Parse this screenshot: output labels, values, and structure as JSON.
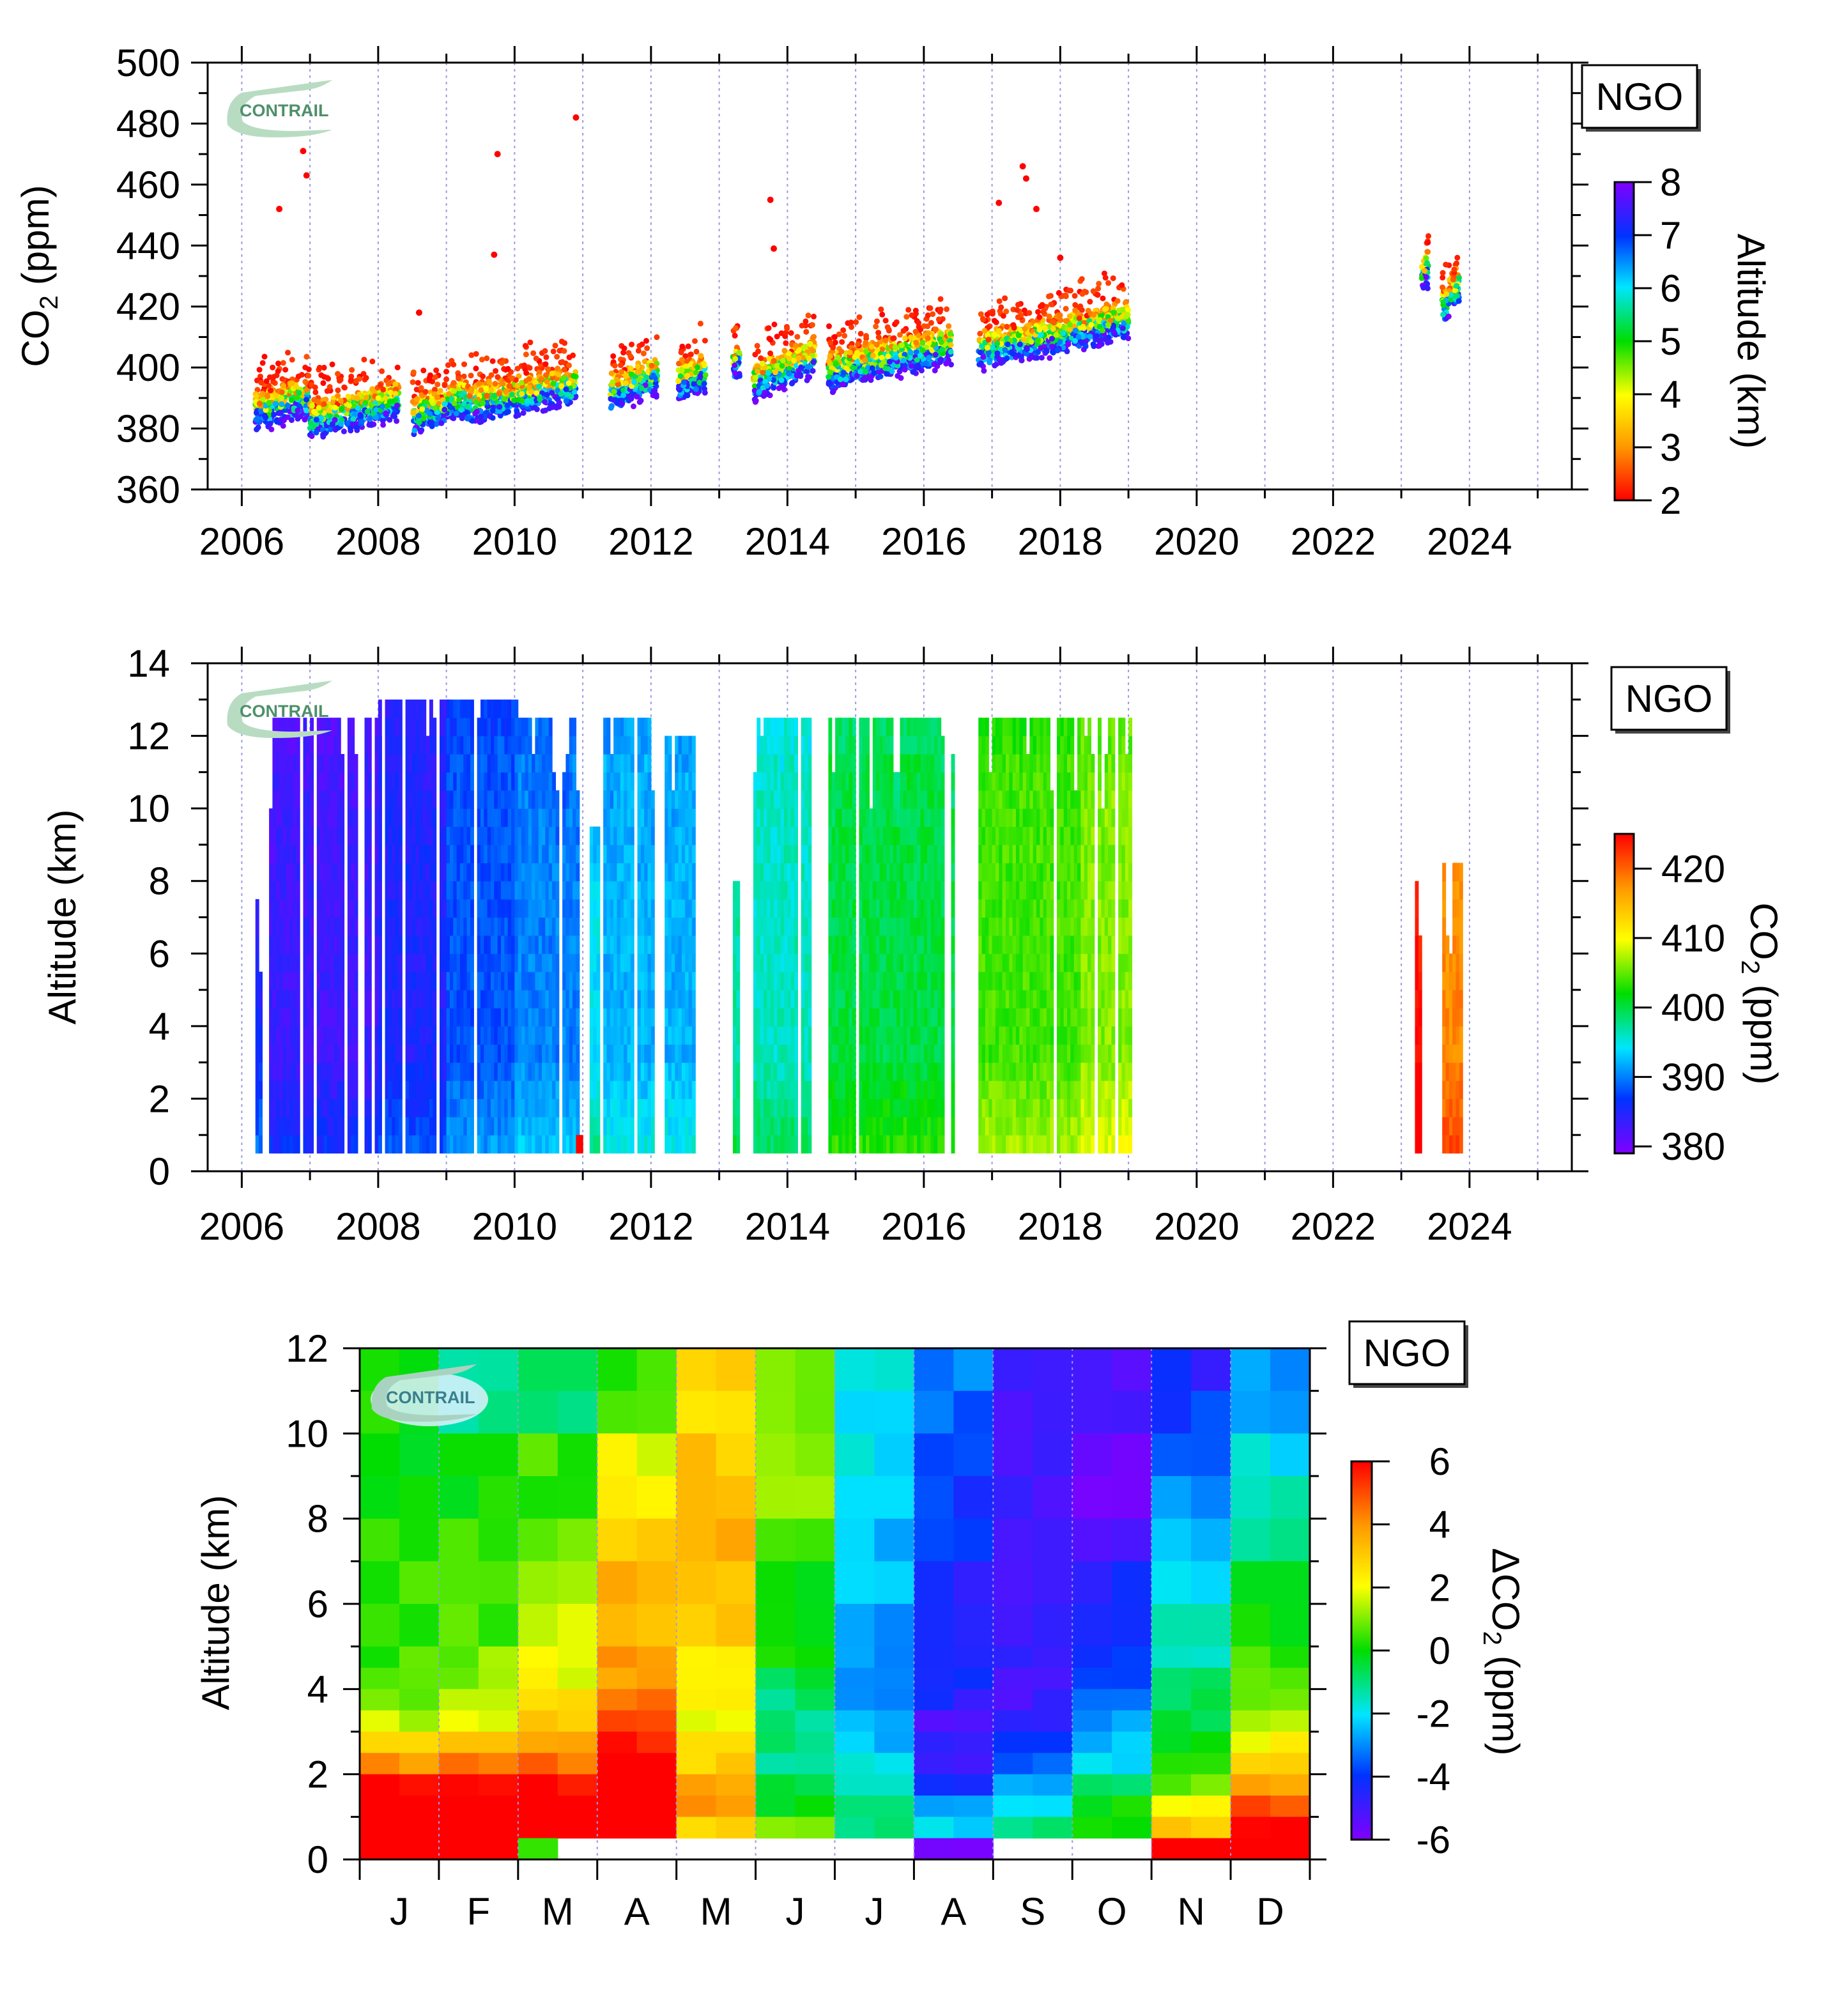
{
  "chart_data": [
    {
      "type": "scatter",
      "ylabel": "CO2 (ppm)",
      "ylabel_main": "CO",
      "ylabel_sub": "2",
      "ylabel_unit": "(ppm)",
      "xlim": [
        2005.5,
        2025.5
      ],
      "ylim": [
        360,
        500
      ],
      "x_ticks": [
        2006,
        2008,
        2010,
        2012,
        2014,
        2016,
        2018,
        2020,
        2022,
        2024
      ],
      "y_ticks": [
        360,
        380,
        400,
        420,
        440,
        460,
        480,
        500
      ],
      "grid": "vertical dotted lines each year",
      "colorbar": {
        "label": "Altitude (km)",
        "range": [
          2,
          8
        ],
        "ticks": [
          2,
          3,
          4,
          5,
          6,
          7,
          8
        ]
      },
      "site_label": "NGO",
      "logo": "CONTRAIL",
      "series_segments": [
        {
          "x_start": 2006.2,
          "x_end": 2007.0,
          "y_low": 380,
          "y_high": 392
        },
        {
          "x_start": 2007.0,
          "x_end": 2008.3,
          "y_low": 377,
          "y_high": 394
        },
        {
          "x_start": 2008.5,
          "x_end": 2009.3,
          "y_low": 378,
          "y_high": 395
        },
        {
          "x_start": 2009.3,
          "x_end": 2010.9,
          "y_low": 382,
          "y_high": 399
        },
        {
          "x_start": 2011.4,
          "x_end": 2012.1,
          "y_low": 386,
          "y_high": 401
        },
        {
          "x_start": 2012.4,
          "x_end": 2012.8,
          "y_low": 390,
          "y_high": 397
        },
        {
          "x_start": 2013.2,
          "x_end": 2013.3,
          "y_low": 396,
          "y_high": 400
        },
        {
          "x_start": 2013.5,
          "x_end": 2014.4,
          "y_low": 390,
          "y_high": 410
        },
        {
          "x_start": 2014.6,
          "x_end": 2016.4,
          "y_low": 393,
          "y_high": 415
        },
        {
          "x_start": 2016.8,
          "x_end": 2019.0,
          "y_low": 400,
          "y_high": 425
        },
        {
          "x_start": 2023.3,
          "x_end": 2023.4,
          "y_low": 425,
          "y_high": 430
        },
        {
          "x_start": 2023.6,
          "x_end": 2023.85,
          "y_low": 414,
          "y_high": 434
        }
      ],
      "outliers": [
        {
          "x": 2006.55,
          "y": 452
        },
        {
          "x": 2006.9,
          "y": 471
        },
        {
          "x": 2006.95,
          "y": 463
        },
        {
          "x": 2009.75,
          "y": 470
        },
        {
          "x": 2009.7,
          "y": 437
        },
        {
          "x": 2010.9,
          "y": 482
        },
        {
          "x": 2013.75,
          "y": 455
        },
        {
          "x": 2013.8,
          "y": 439
        },
        {
          "x": 2017.1,
          "y": 454
        },
        {
          "x": 2017.45,
          "y": 466
        },
        {
          "x": 2017.5,
          "y": 462
        },
        {
          "x": 2017.65,
          "y": 452
        },
        {
          "x": 2018.0,
          "y": 436
        },
        {
          "x": 2008.6,
          "y": 418
        }
      ]
    },
    {
      "type": "heatmap",
      "ylabel": "Altitude (km)",
      "xlim": [
        2005.5,
        2025.5
      ],
      "ylim": [
        0,
        14
      ],
      "x_ticks": [
        2006,
        2008,
        2010,
        2012,
        2014,
        2016,
        2018,
        2020,
        2022,
        2024
      ],
      "y_ticks": [
        0,
        2,
        4,
        6,
        8,
        10,
        12,
        14
      ],
      "colorbar": {
        "label": "CO2 (ppm)",
        "label_main": "CO",
        "label_sub": "2",
        "label_unit": "(ppm)",
        "range": [
          379,
          425
        ],
        "ticks": [
          380,
          390,
          400,
          410,
          420
        ]
      },
      "site_label": "NGO",
      "logo": "CONTRAIL",
      "bands": [
        {
          "x_start": 2006.2,
          "x_end": 2006.3,
          "top": 8,
          "v": 386
        },
        {
          "x_start": 2006.4,
          "x_end": 2008.0,
          "top": 12.5,
          "v": 383
        },
        {
          "x_start": 2008.0,
          "x_end": 2009.0,
          "top": 13,
          "v": 385
        },
        {
          "x_start": 2009.0,
          "x_end": 2010.0,
          "top": 13,
          "v": 388
        },
        {
          "x_start": 2010.0,
          "x_end": 2010.9,
          "top": 12.5,
          "v": 390
        },
        {
          "x_start": 2010.9,
          "x_end": 2011.0,
          "top": 1,
          "v": 425
        },
        {
          "x_start": 2011.1,
          "x_end": 2011.2,
          "top": 9.5,
          "v": 394
        },
        {
          "x_start": 2011.3,
          "x_end": 2012.0,
          "top": 12.5,
          "v": 392
        },
        {
          "x_start": 2012.2,
          "x_end": 2012.6,
          "top": 12,
          "v": 392
        },
        {
          "x_start": 2013.2,
          "x_end": 2013.3,
          "top": 8,
          "v": 397
        },
        {
          "x_start": 2013.5,
          "x_end": 2014.4,
          "top": 12.5,
          "v": 396
        },
        {
          "x_start": 2014.6,
          "x_end": 2016.4,
          "top": 12.5,
          "v": 400
        },
        {
          "x_start": 2016.8,
          "x_end": 2018.3,
          "top": 12.5,
          "v": 404
        },
        {
          "x_start": 2018.3,
          "x_end": 2019.0,
          "top": 12.5,
          "v": 406
        },
        {
          "x_start": 2023.2,
          "x_end": 2023.3,
          "top": 8,
          "v": 425
        },
        {
          "x_start": 2023.6,
          "x_end": 2023.85,
          "top": 8.5,
          "v": 418
        }
      ]
    },
    {
      "type": "heatmap",
      "ylabel": "Altitude (km)",
      "x_categories": [
        "J",
        "F",
        "M",
        "A",
        "M",
        "J",
        "J",
        "A",
        "S",
        "O",
        "N",
        "D"
      ],
      "ylim": [
        0,
        12
      ],
      "y_ticks": [
        0,
        2,
        4,
        6,
        8,
        10,
        12
      ],
      "colorbar": {
        "label": "ΔCO2 (ppm)",
        "label_main": "ΔCO",
        "label_sub": "2",
        "label_unit": "(ppm)",
        "range": [
          -6,
          6
        ],
        "ticks": [
          -6,
          -4,
          -2,
          0,
          2,
          4,
          6
        ]
      },
      "site_label": "NGO",
      "logo": "CONTRAIL",
      "altitude_bands": [
        12,
        11,
        10,
        9,
        8,
        7,
        6,
        5,
        4.5,
        4,
        3.5,
        3,
        2.5,
        2,
        1.5,
        1,
        0.5
      ],
      "profiles": {
        "J": [
          0,
          0,
          0,
          0,
          0.5,
          0.5,
          0.5,
          0.5,
          0.5,
          1,
          1.5,
          2.5,
          4,
          6,
          6.5,
          6.5,
          6.5
        ],
        "F": [
          -1,
          -1,
          0,
          0,
          0.5,
          0.5,
          0.5,
          1,
          1,
          1.5,
          2,
          3,
          4.5,
          6,
          6.5,
          6.5,
          6.5
        ],
        "M": [
          -1,
          -1,
          0.5,
          0.5,
          1,
          1.5,
          1.5,
          2,
          2,
          2.5,
          3,
          3.5,
          4.5,
          6,
          6.5,
          6.5,
          0
        ],
        "A": [
          0.5,
          1,
          2,
          2.5,
          3,
          3.5,
          3.5,
          4,
          4,
          4.5,
          5,
          5.5,
          6,
          6.5,
          7,
          7,
          0
        ],
        "M2": [
          3,
          2.5,
          3,
          3,
          3.5,
          3,
          3,
          2.5,
          2.5,
          2,
          2,
          2.5,
          3,
          3.5,
          4,
          3,
          0
        ],
        "J2": [
          1,
          1,
          1,
          1,
          0.5,
          0,
          0,
          0,
          -0.5,
          -1,
          -1,
          -1,
          -1,
          -0.5,
          0,
          1,
          0
        ],
        "J3": [
          -2,
          -2,
          -2,
          -2,
          -2.5,
          -2.5,
          -3,
          -3,
          -3,
          -3,
          -2.5,
          -2.5,
          -2,
          -1.5,
          -1,
          -1,
          0
        ],
        "A2": [
          -3,
          -3.5,
          -4,
          -4,
          -4,
          -4.5,
          -4.5,
          -4.5,
          -4.5,
          -4.5,
          -5,
          -5,
          -5,
          -4,
          -3,
          -2,
          -6
        ],
        "S": [
          -5,
          -5,
          -5,
          -5,
          -5,
          -5,
          -5,
          -5,
          -5,
          -5,
          -4.5,
          -4,
          -3.5,
          -3,
          -2,
          -1,
          0
        ],
        "O": [
          -5,
          -5,
          -5.5,
          -5.5,
          -5,
          -4.5,
          -4.5,
          -4,
          -4,
          -3.5,
          -3,
          -2.5,
          -2,
          -1,
          0,
          0,
          0
        ],
        "N": [
          -4.5,
          -4,
          -3.5,
          -3,
          -2.5,
          -2,
          -1.5,
          -1.5,
          -1,
          -0.5,
          -0.5,
          0,
          0.5,
          1,
          2,
          3,
          6
        ],
        "D": [
          -3,
          -2.5,
          -2,
          -1.5,
          -1,
          -0.5,
          0,
          0.5,
          0.5,
          1,
          1.5,
          2,
          3,
          4,
          5,
          6,
          6.5
        ]
      }
    }
  ]
}
